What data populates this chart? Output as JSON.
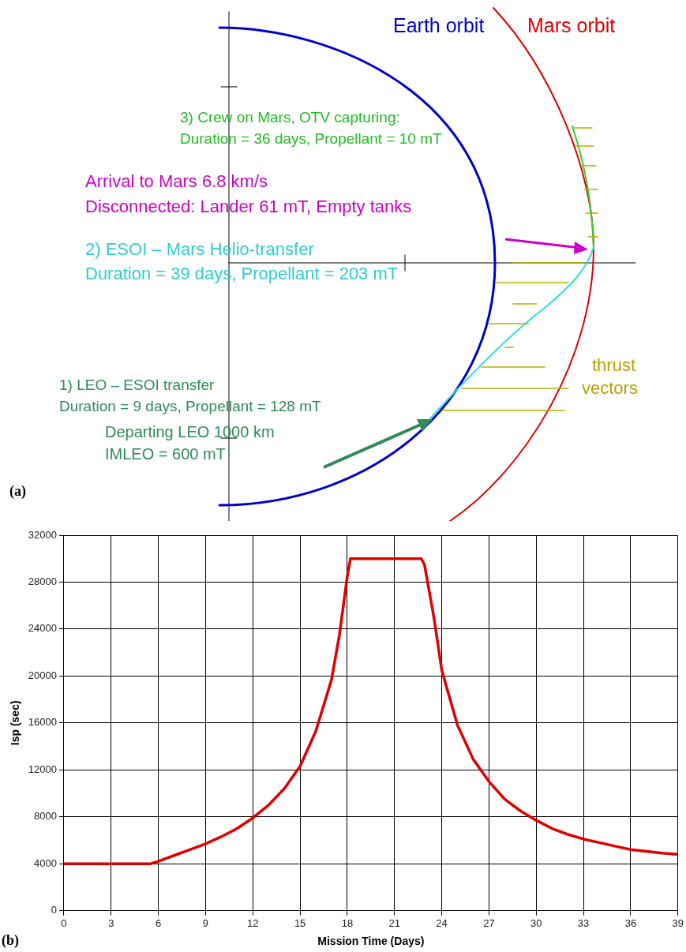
{
  "chart_data": [
    {
      "type": "other",
      "annotations": [
        "Earth orbit",
        "Mars orbit",
        "3) Crew on Mars, OTV capturing:",
        "Duration = 36 days, Propellant = 10 mT",
        "Arrival to Mars 6.8 km/s",
        "Disconnected: Lander 61 mT, Empty tanks",
        "2) ESOI – Mars Helio-transfer",
        "Duration = 39 days, Propellant = 203 mT",
        "1) LEO – ESOI transfer",
        "Duration = 9 days, Propellant = 128 mT",
        "thrust",
        "vectors",
        "Departing LEO 1000 km",
        "IMLEO = 600 mT",
        "(a)"
      ]
    },
    {
      "type": "line",
      "xlabel": "Mission Time (Days)",
      "ylabel": "Isp (sec)",
      "annotations": [
        "(b)"
      ],
      "x": [
        0,
        5.5,
        6,
        7,
        8,
        9,
        10,
        11,
        12,
        13,
        14,
        15,
        16,
        17,
        17.5,
        18,
        18.2,
        22.7,
        22.9,
        23.5,
        24,
        25,
        26,
        27,
        28,
        29,
        30,
        31,
        32,
        33,
        34,
        35,
        36,
        37,
        38,
        39
      ],
      "series": [
        {
          "color": "#e00000",
          "values": [
            4000,
            4000,
            4200,
            4700,
            5200,
            5700,
            6300,
            7000,
            7900,
            9000,
            10400,
            12300,
            15300,
            19700,
            23500,
            28500,
            30000,
            30000,
            29500,
            25000,
            20500,
            15800,
            12900,
            11000,
            9500,
            8500,
            7700,
            7000,
            6500,
            6100,
            5800,
            5500,
            5200,
            5050,
            4900,
            4800
          ]
        }
      ],
      "xlim": [
        0,
        39
      ],
      "xticks": [
        0,
        3,
        6,
        9,
        12,
        15,
        18,
        21,
        24,
        27,
        30,
        33,
        36,
        39
      ],
      "ylim": [
        0,
        32000
      ],
      "yticks": [
        0,
        4000,
        8000,
        12000,
        16000,
        20000,
        24000,
        28000,
        32000
      ],
      "grid": true,
      "marker": "none",
      "line_style": "solid",
      "legend": false
    }
  ]
}
